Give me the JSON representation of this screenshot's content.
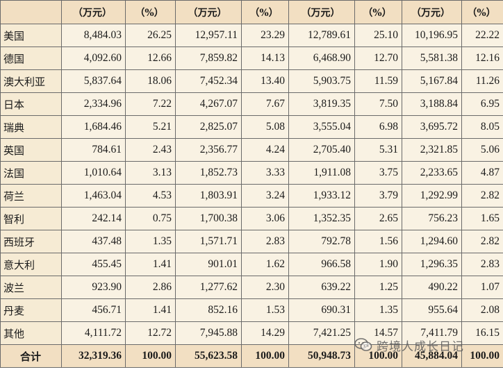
{
  "table": {
    "header": [
      "",
      "（万元）",
      "（%）",
      "（万元）",
      "（%）",
      "（万元）",
      "（%）",
      "（万元）",
      "（%）"
    ],
    "rows": [
      [
        "美国",
        "8,484.03",
        "26.25",
        "12,957.11",
        "23.29",
        "12,789.61",
        "25.10",
        "10,196.95",
        "22.22"
      ],
      [
        "德国",
        "4,092.60",
        "12.66",
        "7,859.82",
        "14.13",
        "6,468.90",
        "12.70",
        "5,581.38",
        "12.16"
      ],
      [
        "澳大利亚",
        "5,837.64",
        "18.06",
        "7,452.34",
        "13.40",
        "5,903.75",
        "11.59",
        "5,167.84",
        "11.26"
      ],
      [
        "日本",
        "2,334.96",
        "7.22",
        "4,267.07",
        "7.67",
        "3,819.35",
        "7.50",
        "3,188.84",
        "6.95"
      ],
      [
        "瑞典",
        "1,684.46",
        "5.21",
        "2,825.07",
        "5.08",
        "3,555.04",
        "6.98",
        "3,695.72",
        "8.05"
      ],
      [
        "英国",
        "784.61",
        "2.43",
        "2,356.77",
        "4.24",
        "2,705.40",
        "5.31",
        "2,321.85",
        "5.06"
      ],
      [
        "法国",
        "1,010.64",
        "3.13",
        "1,852.73",
        "3.33",
        "1,911.08",
        "3.75",
        "2,233.65",
        "4.87"
      ],
      [
        "荷兰",
        "1,463.04",
        "4.53",
        "1,803.91",
        "3.24",
        "1,933.12",
        "3.79",
        "1,292.99",
        "2.82"
      ],
      [
        "智利",
        "242.14",
        "0.75",
        "1,700.38",
        "3.06",
        "1,352.35",
        "2.65",
        "756.23",
        "1.65"
      ],
      [
        "西班牙",
        "437.48",
        "1.35",
        "1,571.71",
        "2.83",
        "792.78",
        "1.56",
        "1,294.60",
        "2.82"
      ],
      [
        "意大利",
        "455.45",
        "1.41",
        "901.01",
        "1.62",
        "966.58",
        "1.90",
        "1,296.35",
        "2.83"
      ],
      [
        "波兰",
        "923.90",
        "2.86",
        "1,277.62",
        "2.30",
        "639.22",
        "1.25",
        "490.22",
        "1.07"
      ],
      [
        "丹麦",
        "456.71",
        "1.41",
        "852.16",
        "1.53",
        "690.31",
        "1.35",
        "955.64",
        "2.08"
      ],
      [
        "其他",
        "4,111.72",
        "12.72",
        "7,945.88",
        "14.29",
        "7,421.25",
        "14.57",
        "7,411.79",
        "16.15"
      ]
    ],
    "total": [
      "合计",
      "32,319.36",
      "100.00",
      "55,623.58",
      "100.00",
      "50,948.73",
      "100.00",
      "45,884.04",
      "100.00"
    ]
  },
  "watermark": {
    "text": "跨境人成长日记",
    "icon": "wechat-icon"
  },
  "colors": {
    "header_bg": "#f2dfc2",
    "cell_bg": "#f9f2e3",
    "first_col_bg": "#f6ebd4",
    "border": "#6a6a6a"
  }
}
